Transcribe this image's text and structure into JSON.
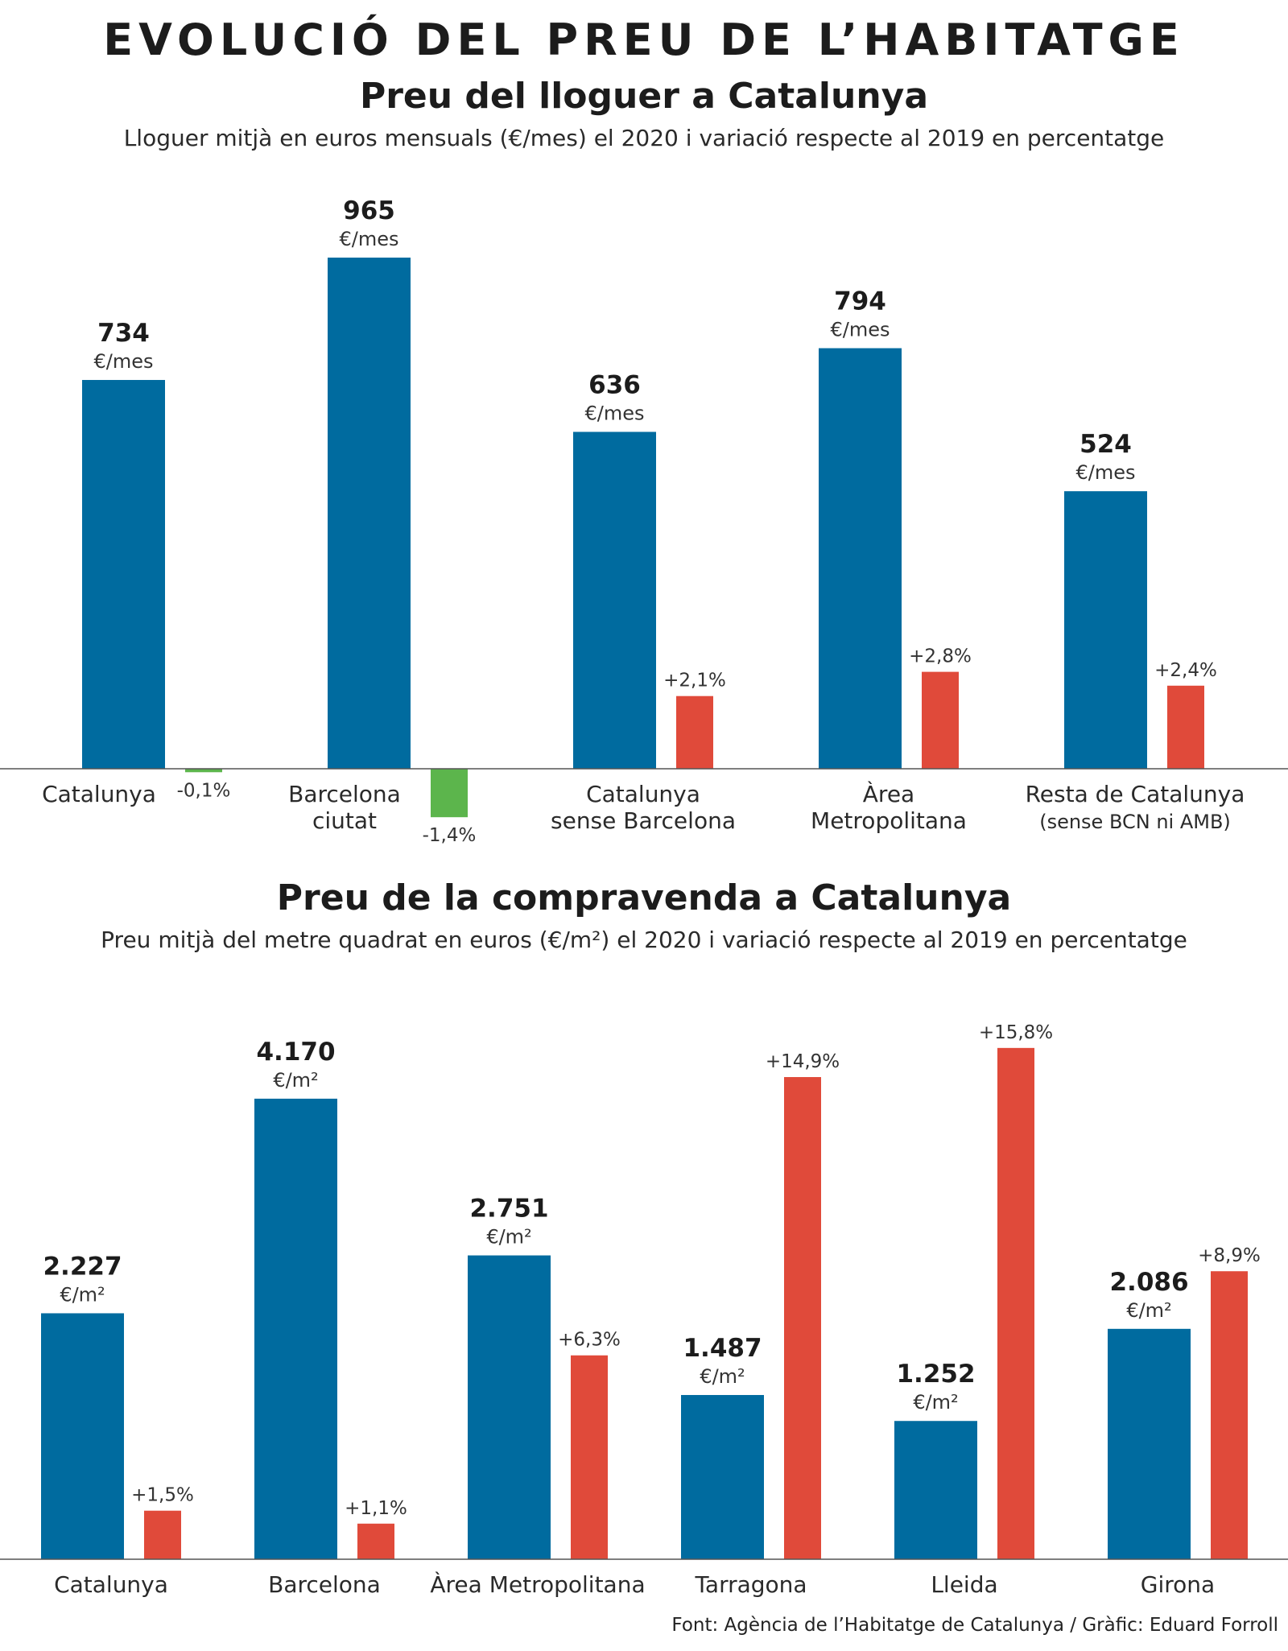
{
  "header": {
    "title": "EVOLUCIÓ DEL PREU DE L’HABITATGE"
  },
  "colors": {
    "price_bar": "#006b9f",
    "increase_bar": "#e04a3a",
    "decrease_bar": "#5cb54c",
    "axis": "#555555"
  },
  "chart_data": [
    {
      "id": "rent",
      "type": "bar",
      "title": "Preu del lloguer a Catalunya",
      "subtitle": "Lloguer mitjà en euros mensuals (€/mes) el 2020 i variació respecte al 2019 en percentatge",
      "unit": "€/mes",
      "categories": [
        [
          "Catalunya"
        ],
        [
          "Barcelona",
          "ciutat"
        ],
        [
          "Catalunya",
          "sense Barcelona"
        ],
        [
          "Àrea",
          "Metropolitana"
        ],
        [
          "Resta de Catalunya",
          "(sense BCN ni AMB)"
        ]
      ],
      "series": [
        {
          "name": "",
          "values": [
            734,
            965,
            636,
            794,
            524
          ],
          "labels": [
            "734",
            "965",
            "636",
            "794",
            "524"
          ]
        },
        {
          "name": "",
          "values": [
            -0.1,
            -1.4,
            2.1,
            2.8,
            2.4
          ],
          "labels": [
            "-0,1%",
            "-1,4%",
            "+2,1%",
            "+2,8%",
            "+2,4%"
          ]
        }
      ],
      "ylim": [
        0,
        1100
      ]
    },
    {
      "id": "sale",
      "type": "bar",
      "title": "Preu de la compravenda a Catalunya",
      "subtitle": "Preu mitjà del metre quadrat en euros (€/m²) el 2020 i variació respecte al 2019 en percentatge",
      "unit": "€/m²",
      "categories": [
        [
          "Catalunya"
        ],
        [
          "Barcelona"
        ],
        [
          "Àrea Metropolitana"
        ],
        [
          "Tarragona"
        ],
        [
          "Lleida"
        ],
        [
          "Girona"
        ]
      ],
      "series": [
        {
          "name": "",
          "values": [
            2227,
            4170,
            2751,
            1487,
            1252,
            2086
          ],
          "labels": [
            "2.227",
            "4.170",
            "2.751",
            "1.487",
            "1.252",
            "2.086"
          ]
        },
        {
          "name": "",
          "values": [
            1.5,
            1.1,
            6.3,
            14.9,
            15.8,
            8.9
          ],
          "labels": [
            "+1,5%",
            "+1,1%",
            "+6,3%",
            "+14,9%",
            "+15,8%",
            "+8,9%"
          ]
        }
      ],
      "ylim": [
        0,
        6300
      ]
    }
  ],
  "source": "Font: Agència de l’Habitatge de Catalunya / Gràfic: Eduard Forroll"
}
